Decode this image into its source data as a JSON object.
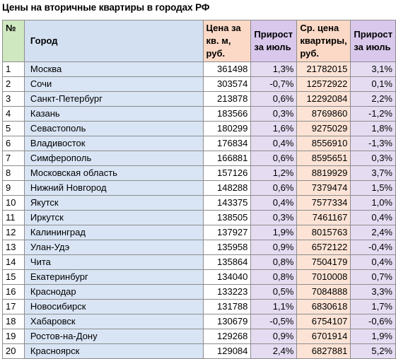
{
  "title": "Цены на вторичные квартиры в городах РФ",
  "header": {
    "num": "№",
    "city": "Город",
    "price_line1": "Цена за",
    "price_line2": "кв. м,",
    "price_line3": "руб.",
    "growth_line1": "Прирост",
    "growth_line2": "за июль",
    "avg_line1": "Ср. цена",
    "avg_line2": "квартиры,",
    "avg_line3": "руб.",
    "growth2_line1": "Прирост",
    "growth2_line2": "за июль"
  },
  "rows": [
    {
      "num": "1",
      "city": "Москва",
      "price": "361498",
      "growth": "1,3%",
      "avg": "21782015",
      "growth2": "3,1%"
    },
    {
      "num": "2",
      "city": "Сочи",
      "price": "303574",
      "growth": "-0,7%",
      "avg": "12572922",
      "growth2": "0,1%"
    },
    {
      "num": "3",
      "city": "Санкт-Петербург",
      "price": "213878",
      "growth": "0,6%",
      "avg": "12292084",
      "growth2": "2,2%"
    },
    {
      "num": "4",
      "city": "Казань",
      "price": "183566",
      "growth": "0,3%",
      "avg": "8769860",
      "growth2": "-1,2%"
    },
    {
      "num": "5",
      "city": "Севастополь",
      "price": "180299",
      "growth": "1,6%",
      "avg": "9275029",
      "growth2": "1,8%"
    },
    {
      "num": "6",
      "city": "Владивосток",
      "price": "176834",
      "growth": "0,4%",
      "avg": "8556910",
      "growth2": "-1,3%"
    },
    {
      "num": "7",
      "city": "Симферополь",
      "price": "166881",
      "growth": "0,6%",
      "avg": "8595651",
      "growth2": "0,3%"
    },
    {
      "num": "8",
      "city": "Московская область",
      "price": "157126",
      "growth": "1,2%",
      "avg": "8819929",
      "growth2": "3,7%"
    },
    {
      "num": "9",
      "city": "Нижний Новгород",
      "price": "148288",
      "growth": "0,6%",
      "avg": "7379474",
      "growth2": "1,5%"
    },
    {
      "num": "10",
      "city": "Якутск",
      "price": "143375",
      "growth": "0,4%",
      "avg": "7577334",
      "growth2": "1,0%"
    },
    {
      "num": "11",
      "city": "Иркутск",
      "price": "138505",
      "growth": "0,3%",
      "avg": "7461167",
      "growth2": "0,4%"
    },
    {
      "num": "12",
      "city": "Калининград",
      "price": "137927",
      "growth": "1,9%",
      "avg": "8015763",
      "growth2": "2,4%"
    },
    {
      "num": "13",
      "city": "Улан-Удэ",
      "price": "135958",
      "growth": "0,9%",
      "avg": "6572122",
      "growth2": "-0,4%"
    },
    {
      "num": "14",
      "city": "Чита",
      "price": "135864",
      "growth": "0,8%",
      "avg": "7504179",
      "growth2": "0,4%"
    },
    {
      "num": "15",
      "city": "Екатеринбург",
      "price": "134040",
      "growth": "0,8%",
      "avg": "7010008",
      "growth2": "0,7%"
    },
    {
      "num": "16",
      "city": "Краснодар",
      "price": "133223",
      "growth": "0,5%",
      "avg": "7084888",
      "growth2": "3,3%"
    },
    {
      "num": "17",
      "city": "Новосибирск",
      "price": "131788",
      "growth": "1,1%",
      "avg": "6830618",
      "growth2": "1,7%"
    },
    {
      "num": "18",
      "city": "Хабаровск",
      "price": "130679",
      "growth": "-0,5%",
      "avg": "6754107",
      "growth2": "-0,6%"
    },
    {
      "num": "19",
      "city": "Ростов-на-Дону",
      "price": "129268",
      "growth": "0,9%",
      "avg": "6701914",
      "growth2": "1,9%"
    },
    {
      "num": "20",
      "city": "Красноярск",
      "price": "129084",
      "growth": "2,4%",
      "avg": "6827881",
      "growth2": "5,2%"
    }
  ]
}
